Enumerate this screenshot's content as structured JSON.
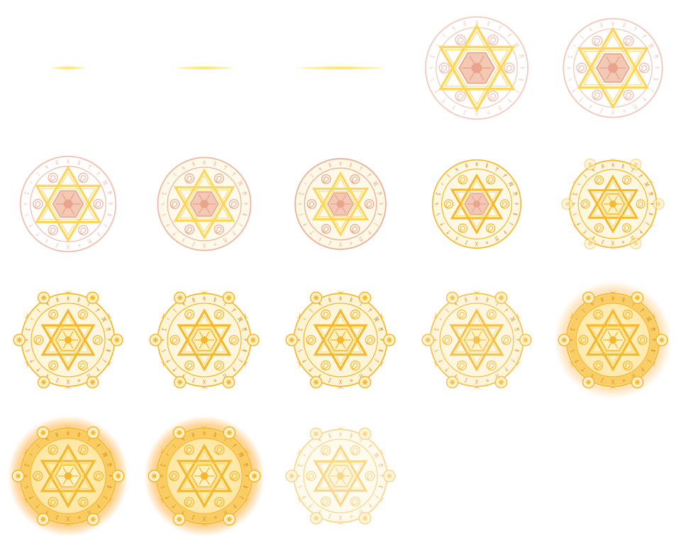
{
  "spritesheet": {
    "name": "magic-circle-summon-effect",
    "columns": 5,
    "rows": 4,
    "frame_count": 18,
    "colors": {
      "gold": "#f5b82e",
      "gold_light": "#ffd65c",
      "gold_pale": "#fde6a3",
      "line_yellow": "#ffd200",
      "rose": "#e8a58c",
      "rose_pale": "#f3c9b6",
      "glow": "#ffb347"
    },
    "frames": [
      {
        "id": 1,
        "kind": "line",
        "line_length": 0.28
      },
      {
        "id": 2,
        "kind": "line",
        "line_length": 0.48
      },
      {
        "id": 3,
        "kind": "line",
        "line_length": 0.72
      },
      {
        "id": 4,
        "kind": "circle",
        "scale": 0.88,
        "star_scale": 1.12,
        "rune_opacity": 0.55,
        "rose": 1.0,
        "fill": 0.0,
        "orbs": 0.0,
        "glow": 0.0,
        "fade": 1.0
      },
      {
        "id": 5,
        "kind": "circle",
        "scale": 0.85,
        "star_scale": 1.08,
        "rune_opacity": 0.6,
        "rose": 1.0,
        "fill": 0.0,
        "orbs": 0.0,
        "glow": 0.0,
        "fade": 1.0
      },
      {
        "id": 6,
        "kind": "circle",
        "scale": 0.82,
        "star_scale": 1.04,
        "rune_opacity": 0.7,
        "rose": 0.9,
        "fill": 0.0,
        "orbs": 0.0,
        "glow": 0.0,
        "fade": 1.0
      },
      {
        "id": 7,
        "kind": "circle",
        "scale": 0.8,
        "star_scale": 0.98,
        "rune_opacity": 0.8,
        "rose": 0.8,
        "fill": 0.05,
        "orbs": 0.0,
        "glow": 0.0,
        "fade": 1.0
      },
      {
        "id": 8,
        "kind": "circle",
        "scale": 0.78,
        "star_scale": 0.92,
        "rune_opacity": 0.9,
        "rose": 0.6,
        "fill": 0.1,
        "orbs": 0.0,
        "glow": 0.0,
        "fade": 1.0
      },
      {
        "id": 9,
        "kind": "circle",
        "scale": 0.76,
        "star_scale": 0.88,
        "rune_opacity": 1.0,
        "rose": 0.4,
        "fill": 0.15,
        "orbs": 0.0,
        "glow": 0.0,
        "fade": 1.0
      },
      {
        "id": 10,
        "kind": "circle",
        "scale": 0.75,
        "star_scale": 0.86,
        "rune_opacity": 1.0,
        "rose": 0.2,
        "fill": 0.2,
        "orbs": 0.5,
        "glow": 0.0,
        "fade": 1.0
      },
      {
        "id": 11,
        "kind": "circle",
        "scale": 0.8,
        "star_scale": 0.86,
        "rune_opacity": 1.0,
        "rose": 0.0,
        "fill": 0.25,
        "orbs": 1.0,
        "glow": 0.0,
        "fade": 1.0
      },
      {
        "id": 12,
        "kind": "circle",
        "scale": 0.8,
        "star_scale": 0.86,
        "rune_opacity": 1.0,
        "rose": 0.0,
        "fill": 0.25,
        "orbs": 1.0,
        "glow": 0.0,
        "fade": 1.0
      },
      {
        "id": 13,
        "kind": "circle",
        "scale": 0.8,
        "star_scale": 0.86,
        "rune_opacity": 1.0,
        "rose": 0.0,
        "fill": 0.3,
        "orbs": 1.0,
        "glow": 0.0,
        "fade": 1.0
      },
      {
        "id": 14,
        "kind": "circle",
        "scale": 0.8,
        "star_scale": 0.86,
        "rune_opacity": 1.0,
        "rose": 0.0,
        "fill": 0.3,
        "orbs": 1.0,
        "glow": 0.0,
        "fade": 0.85
      },
      {
        "id": 15,
        "kind": "circle",
        "scale": 0.8,
        "star_scale": 0.86,
        "rune_opacity": 1.0,
        "rose": 0.0,
        "fill": 0.55,
        "orbs": 1.0,
        "glow": 0.6,
        "fade": 1.0
      },
      {
        "id": 16,
        "kind": "circle",
        "scale": 0.82,
        "star_scale": 0.86,
        "rune_opacity": 1.0,
        "rose": 0.0,
        "fill": 0.65,
        "orbs": 1.0,
        "glow": 1.0,
        "fade": 1.0
      },
      {
        "id": 17,
        "kind": "circle",
        "scale": 0.82,
        "star_scale": 0.86,
        "rune_opacity": 1.0,
        "rose": 0.0,
        "fill": 0.65,
        "orbs": 1.0,
        "glow": 1.0,
        "fade": 1.0
      },
      {
        "id": 18,
        "kind": "circle",
        "scale": 0.8,
        "star_scale": 0.86,
        "rune_opacity": 1.0,
        "rose": 0.0,
        "fill": 0.2,
        "orbs": 1.0,
        "glow": 0.0,
        "fade": 0.55
      }
    ]
  }
}
